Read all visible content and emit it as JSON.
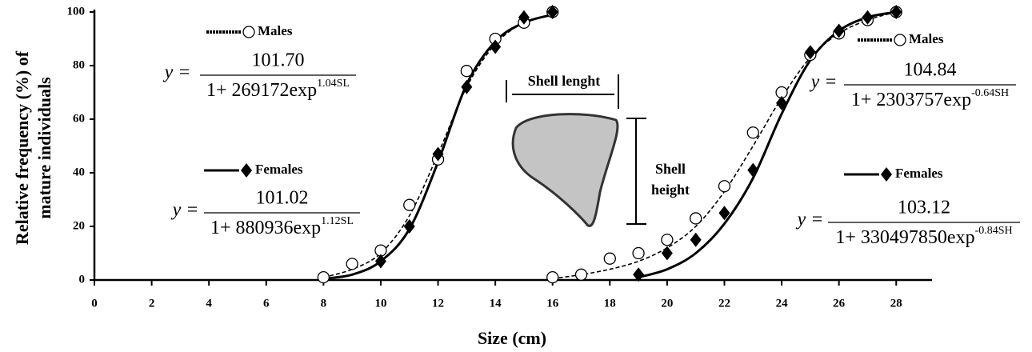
{
  "chart_data": {
    "type": "scatter",
    "y_label": [
      "Relative frequency (%) of",
      "mature individuals"
    ],
    "x_label": "Size (cm)",
    "xlim": [
      0,
      29.25
    ],
    "xticks": [
      0,
      2,
      4,
      6,
      8,
      10,
      12,
      14,
      16,
      18,
      20,
      22,
      24,
      26,
      28
    ],
    "ylim": [
      0,
      100
    ],
    "yticks": [
      0,
      20,
      40,
      60,
      80,
      100
    ],
    "diagram_labels": [
      "Shell lenght",
      "Shell height"
    ],
    "series": [
      {
        "name": "Males",
        "color": "#000000",
        "marker": "circle",
        "line": "dashed",
        "x": [
          8,
          9,
          10,
          11,
          12,
          13,
          14,
          15,
          16
        ],
        "values": [
          1,
          6,
          11,
          28,
          45,
          78,
          90,
          96,
          100
        ],
        "fit_x": [
          8,
          9,
          10,
          11,
          12,
          13,
          14,
          15,
          16
        ],
        "fit": [
          1,
          4,
          10,
          24,
          47,
          72,
          88,
          96,
          99
        ],
        "equation": {
          "lhs": "y =",
          "numerator": "101.70",
          "denominator": "1+ 269172exp",
          "exponent": "1.04SL"
        }
      },
      {
        "name": "Females",
        "color": "#000000",
        "marker": "diamond",
        "line": "solid",
        "x": [
          10,
          11,
          12,
          13,
          14,
          15,
          16
        ],
        "values": [
          7,
          20,
          47,
          72,
          87,
          98,
          100
        ],
        "fit_x": [
          8,
          9,
          10,
          11,
          12,
          13,
          14,
          15,
          16
        ],
        "fit": [
          0.5,
          2,
          7,
          19,
          44,
          73,
          89,
          96,
          99
        ],
        "equation": {
          "lhs": "y =",
          "numerator": "101.02",
          "denominator": "1+ 880936exp",
          "exponent": "1.12SL"
        }
      },
      {
        "name": "Males",
        "color": "#000000",
        "marker": "circle",
        "line": "dashed",
        "x": [
          16,
          17,
          18,
          19,
          20,
          21,
          22,
          23,
          24,
          25,
          26,
          27,
          28
        ],
        "values": [
          1,
          2,
          8,
          10,
          15,
          23,
          35,
          55,
          70,
          84,
          92,
          97,
          100
        ],
        "fit_x": [
          16,
          17,
          18,
          19,
          20,
          21,
          22,
          23,
          24,
          25,
          26,
          27,
          28
        ],
        "fit": [
          0.5,
          2,
          4,
          7,
          12,
          20,
          33,
          50,
          68,
          83,
          92,
          97,
          100
        ],
        "equation": {
          "lhs": "y =",
          "numerator": "104.84",
          "denominator": "1+ 2303757exp",
          "exponent": "-0.64SH"
        }
      },
      {
        "name": "Females",
        "color": "#000000",
        "marker": "diamond",
        "line": "solid",
        "x": [
          19,
          20,
          21,
          22,
          23,
          24,
          25,
          26,
          27,
          28
        ],
        "values": [
          2,
          10,
          15,
          25,
          41,
          66,
          85,
          93,
          98,
          100
        ],
        "fit_x": [
          19,
          20,
          21,
          22,
          23,
          24,
          25,
          26,
          27,
          28
        ],
        "fit": [
          1,
          4,
          10,
          21,
          38,
          62,
          82,
          93,
          98,
          100
        ],
        "equation": {
          "lhs": "y =",
          "numerator": "103.12",
          "denominator": "1+ 330497850exp",
          "exponent": "-0.84SH"
        }
      }
    ]
  }
}
